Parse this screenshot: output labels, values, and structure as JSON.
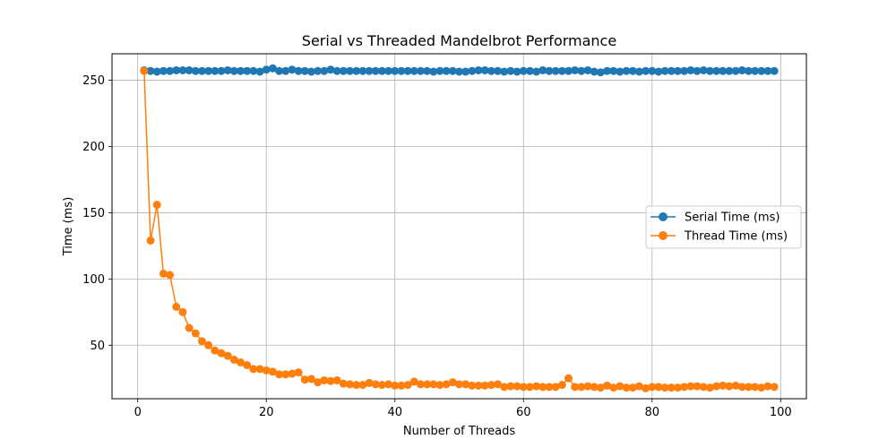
{
  "chart_data": {
    "type": "line",
    "title": "Serial vs Threaded Mandelbrot Performance",
    "xlabel": "Number of Threads",
    "ylabel": "Time (ms)",
    "xlim": [
      -4,
      104
    ],
    "ylim": [
      9.6,
      270
    ],
    "xticks": [
      0,
      20,
      40,
      60,
      80,
      100
    ],
    "yticks": [
      50,
      100,
      150,
      200,
      250
    ],
    "grid": true,
    "legend_position": "center-right",
    "x": [
      1,
      2,
      3,
      4,
      5,
      6,
      7,
      8,
      9,
      10,
      11,
      12,
      13,
      14,
      15,
      16,
      17,
      18,
      19,
      20,
      21,
      22,
      23,
      24,
      25,
      26,
      27,
      28,
      29,
      30,
      31,
      32,
      33,
      34,
      35,
      36,
      37,
      38,
      39,
      40,
      41,
      42,
      43,
      44,
      45,
      46,
      47,
      48,
      49,
      50,
      51,
      52,
      53,
      54,
      55,
      56,
      57,
      58,
      59,
      60,
      61,
      62,
      63,
      64,
      65,
      66,
      67,
      68,
      69,
      70,
      71,
      72,
      73,
      74,
      75,
      76,
      77,
      78,
      79,
      80,
      81,
      82,
      83,
      84,
      85,
      86,
      87,
      88,
      89,
      90,
      91,
      92,
      93,
      94,
      95,
      96,
      97,
      98,
      99
    ],
    "series": [
      {
        "name": "Serial Time (ms)",
        "color": "#1f77b4",
        "values": [
          257.5,
          257,
          256.5,
          257,
          257,
          257.5,
          257.5,
          257.5,
          257,
          257,
          257,
          257,
          257,
          257.5,
          257,
          257,
          257,
          257,
          256.5,
          258,
          259,
          257,
          257,
          258,
          257,
          257,
          256.5,
          257,
          257,
          258,
          257,
          257,
          257,
          257,
          257,
          257,
          257,
          257,
          257,
          257,
          257,
          257,
          257,
          257,
          257,
          256.5,
          257,
          257,
          257,
          256.5,
          256.5,
          257,
          257.5,
          257.5,
          257,
          257,
          256.5,
          257,
          256.5,
          257,
          257,
          256.5,
          257.5,
          257,
          257,
          257,
          257,
          257.5,
          257,
          257.5,
          256.5,
          256,
          257,
          257,
          256.5,
          257,
          257,
          256.5,
          257,
          257,
          256.5,
          257,
          257,
          257,
          257,
          257.5,
          257,
          257.5,
          257,
          257,
          257,
          257,
          257,
          257.5,
          257,
          257,
          257,
          257,
          257
        ]
      },
      {
        "name": "Thread Time (ms)",
        "color": "#ff7f0e",
        "values": [
          257,
          129,
          156,
          104,
          103,
          79,
          75,
          63,
          59,
          53,
          50,
          46,
          44,
          42,
          39,
          37,
          35,
          32,
          32,
          31,
          30,
          28,
          28,
          28.5,
          29.5,
          24,
          24.5,
          22,
          23.5,
          23,
          23.5,
          21,
          20.5,
          20,
          20,
          21.5,
          20.5,
          20,
          20.5,
          19.5,
          19.5,
          20,
          22.5,
          20.5,
          20.5,
          20.5,
          20,
          20.5,
          22,
          20.5,
          20.5,
          19.5,
          19.5,
          19.5,
          20,
          20.5,
          18.5,
          19,
          19,
          18.5,
          18.5,
          19,
          18.5,
          18.5,
          18.5,
          20,
          25,
          18.5,
          18.5,
          19,
          18.5,
          18,
          19.5,
          18,
          19,
          18,
          18,
          19,
          17.5,
          18.5,
          18.5,
          18,
          18,
          18,
          18.5,
          19,
          19,
          18.5,
          18,
          19,
          19.5,
          19,
          19.5,
          18.5,
          18.5,
          18.5,
          18,
          19,
          18.5
        ]
      }
    ]
  }
}
